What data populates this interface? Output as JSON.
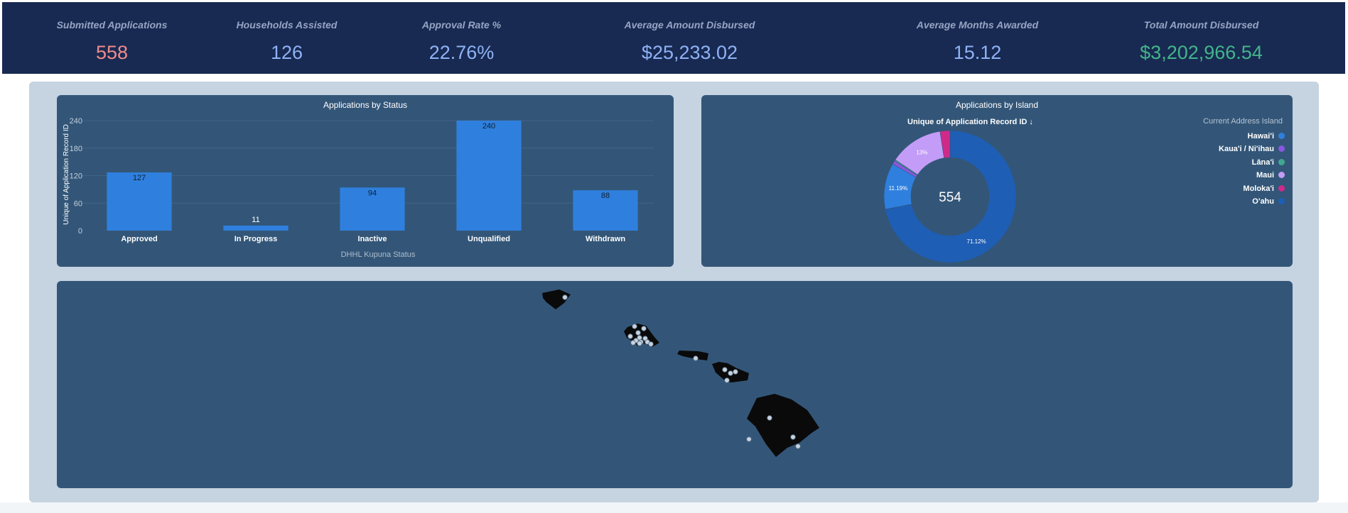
{
  "kpis": [
    {
      "label": "Submitted Applications",
      "value": "558",
      "color": "#f28b8b"
    },
    {
      "label": "Households Assisted",
      "value": "126",
      "color": "#8fb2f5"
    },
    {
      "label": "Approval Rate %",
      "value": "22.76%",
      "color": "#8fb2f5"
    },
    {
      "label": "Average Amount Disbursed",
      "value": "$25,233.02",
      "color": "#8fb2f5"
    },
    {
      "label": "Average Months Awarded",
      "value": "15.12",
      "color": "#8fb2f5"
    },
    {
      "label": "Total Amount Disbursed",
      "value": "$3,202,966.54",
      "color": "#43b58a"
    }
  ],
  "status_chart": {
    "title": "Applications by Status",
    "chart_data": {
      "type": "bar",
      "categories": [
        "Approved",
        "In Progress",
        "Inactive",
        "Unqualified",
        "Withdrawn"
      ],
      "values": [
        127,
        11,
        94,
        240,
        88
      ],
      "data_labels": [
        "127",
        "11",
        "94",
        "240",
        "88"
      ],
      "xlabel": "DHHL Kupuna Status",
      "ylabel": "Unique of Application Record ID",
      "ylim": [
        0,
        240
      ],
      "yticks": [
        "0",
        "60",
        "120",
        "180",
        "240"
      ],
      "bar_color": "#2f80de",
      "grid": true
    }
  },
  "island_chart": {
    "title": "Applications by Island",
    "subtitle": "Unique of Application Record ID ↓",
    "center_label": "554",
    "legend_title": "Current Address Island",
    "chart_data": {
      "type": "pie",
      "donut": true,
      "slices": [
        {
          "name": "Hawai'i",
          "value": 11.19,
          "label": "11.19%",
          "color": "#2f80de"
        },
        {
          "name": "Kaua'i / Ni'ihau",
          "value": 0.9,
          "label": "",
          "color": "#8a57e0"
        },
        {
          "name": "Lāna'i",
          "value": 0.3,
          "label": "",
          "color": "#3fa88e"
        },
        {
          "name": "Maui",
          "value": 13,
          "label": "13%",
          "color": "#c39cf7"
        },
        {
          "name": "Moloka'i",
          "value": 2.4,
          "label": "",
          "color": "#cf2a8a"
        },
        {
          "name": "O'ahu",
          "value": 71.12,
          "label": "71.12%",
          "color": "#1e5eb5"
        }
      ],
      "legend_position": "top-right"
    }
  },
  "map": {
    "island_color": "#0a0a0a",
    "marker_color": "#c6d3e0"
  }
}
